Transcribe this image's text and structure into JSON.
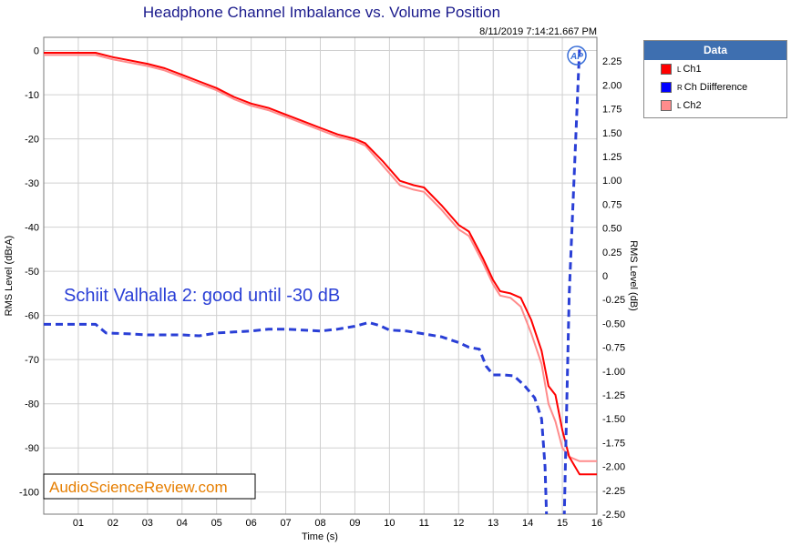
{
  "header": {
    "title": "Headphone Channel Imbalance vs. Volume Position",
    "timestamp": "8/11/2019 7:14:21.667 PM"
  },
  "annotation": {
    "text": "Schiit Valhalla 2: good until -30 dB",
    "color": "#2a3fd6"
  },
  "watermark": {
    "text": "AudioScienceReview.com",
    "color": "#e67e00"
  },
  "logo_text": "AP",
  "legend": {
    "title": "Data",
    "items": [
      {
        "sup": "L",
        "label": "Ch1",
        "color": "#ff0000"
      },
      {
        "sup": "R",
        "label": "Ch Diifference",
        "color": "#0000ff"
      },
      {
        "sup": "L",
        "label": "Ch2",
        "color": "#ff8c8c"
      }
    ]
  },
  "chart_data": {
    "type": "line",
    "title": "Headphone Channel Imbalance vs. Volume Position",
    "xlabel": "Time (s)",
    "ylabel": "RMS Level (dBrA)",
    "y2label": "RMS Level (dB)",
    "xlim": [
      0,
      16
    ],
    "ylim": [
      -105,
      3
    ],
    "y2lim": [
      -2.5,
      2.5
    ],
    "x_ticks": [
      1,
      2,
      3,
      4,
      5,
      6,
      7,
      8,
      9,
      10,
      11,
      12,
      13,
      14,
      15,
      16
    ],
    "x_tick_labels": [
      "01",
      "02",
      "03",
      "04",
      "05",
      "06",
      "07",
      "08",
      "09",
      "10",
      "11",
      "12",
      "13",
      "14",
      "15",
      "16"
    ],
    "y_ticks": [
      0,
      -10,
      -20,
      -30,
      -40,
      -50,
      -60,
      -70,
      -80,
      -90,
      -100
    ],
    "y_tick_labels": [
      "0",
      "-10",
      "-20",
      "-30",
      "-40",
      "-50",
      "-60",
      "-70",
      "-80",
      "-90",
      "-100"
    ],
    "y2_ticks": [
      2.25,
      2.0,
      1.75,
      1.5,
      1.25,
      1.0,
      0.75,
      0.5,
      0.25,
      0,
      -0.25,
      -0.5,
      -0.75,
      -1.0,
      -1.25,
      -1.5,
      -1.75,
      -2.0,
      -2.25,
      -2.5
    ],
    "y2_tick_labels": [
      "2.25",
      "2.00",
      "1.75",
      "1.50",
      "1.25",
      "1.00",
      "0.75",
      "0.50",
      "0.25",
      "0",
      "-0.25",
      "-0.50",
      "-0.75",
      "-1.00",
      "-1.25",
      "-1.50",
      "-1.75",
      "-2.00",
      "-2.25",
      "-2.50"
    ],
    "grid": true,
    "legend_position": "top-right, outside plot",
    "series": [
      {
        "name": "Ch1",
        "color": "#ff0000",
        "dash": "solid",
        "axis": "left",
        "x": [
          0,
          1.5,
          2,
          3,
          3.5,
          4,
          4.5,
          5,
          5.5,
          6,
          6.5,
          7,
          7.5,
          8,
          8.5,
          9,
          9.3,
          9.8,
          10.3,
          10.7,
          11,
          11.5,
          12,
          12.3,
          12.7,
          13,
          13.2,
          13.5,
          13.8,
          14.1,
          14.4,
          14.6,
          14.8,
          15,
          15.2,
          15.5,
          16
        ],
        "values": [
          -0.5,
          -0.5,
          -1.5,
          -3,
          -4,
          -5.5,
          -7,
          -8.5,
          -10.5,
          -12,
          -13,
          -14.5,
          -16,
          -17.5,
          -19,
          -20,
          -21,
          -25,
          -29.5,
          -30.5,
          -31,
          -35,
          -39.5,
          -41,
          -47,
          -52,
          -54.5,
          -55,
          -56,
          -61,
          -68,
          -76,
          -78,
          -86,
          -92,
          -96,
          -96
        ]
      },
      {
        "name": "Ch Diifference",
        "color": "#2a3fd6",
        "dash": "dashed",
        "axis": "right",
        "x": [
          0,
          1.5,
          1.8,
          2.5,
          3,
          3.5,
          4,
          4.5,
          5,
          5.5,
          6,
          6.5,
          7,
          7.5,
          8,
          8.5,
          9,
          9.4,
          9.7,
          10,
          10.5,
          11,
          11.5,
          12,
          12.3,
          12.6,
          12.8,
          13,
          13.3,
          13.6,
          13.9,
          14.2,
          14.4,
          14.5,
          14.55,
          15.05,
          15.2,
          15.5
        ],
        "values": [
          -0.51,
          -0.51,
          -0.6,
          -0.61,
          -0.62,
          -0.62,
          -0.62,
          -0.63,
          -0.6,
          -0.59,
          -0.58,
          -0.56,
          -0.56,
          -0.57,
          -0.58,
          -0.56,
          -0.53,
          -0.49,
          -0.52,
          -0.57,
          -0.58,
          -0.61,
          -0.64,
          -0.7,
          -0.75,
          -0.77,
          -0.95,
          -1.04,
          -1.04,
          -1.05,
          -1.15,
          -1.28,
          -1.5,
          -2.0,
          -2.6,
          -2.6,
          -0.2,
          2.4
        ]
      },
      {
        "name": "Ch2",
        "color": "#ff8c8c",
        "dash": "solid",
        "axis": "left",
        "x": [
          0,
          1.5,
          2,
          3,
          3.5,
          4,
          4.5,
          5,
          5.5,
          6,
          6.5,
          7,
          7.5,
          8,
          8.5,
          9,
          9.3,
          9.8,
          10.3,
          10.7,
          11,
          11.5,
          12,
          12.3,
          12.7,
          13,
          13.2,
          13.5,
          13.8,
          14.1,
          14.4,
          14.6,
          14.8,
          15,
          15.2,
          15.5,
          16
        ],
        "values": [
          -1,
          -1,
          -2,
          -3.5,
          -4.5,
          -6,
          -7.5,
          -9,
          -11,
          -12.5,
          -13.5,
          -15,
          -16.5,
          -18,
          -19.5,
          -20.5,
          -21.5,
          -26,
          -30.5,
          -31.5,
          -32,
          -36,
          -40.5,
          -42,
          -48,
          -53,
          -55.5,
          -56,
          -58,
          -64,
          -71,
          -80,
          -84,
          -90,
          -92,
          -93,
          -93
        ]
      }
    ]
  }
}
